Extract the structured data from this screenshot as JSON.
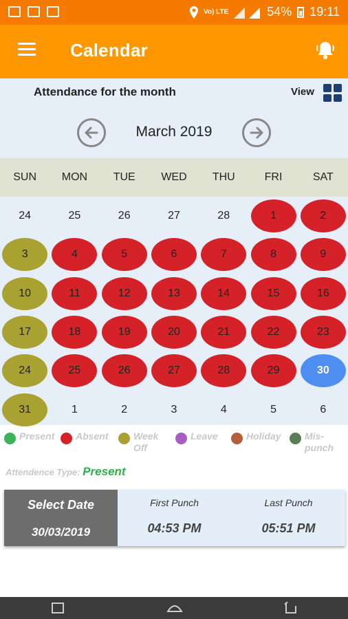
{
  "status_bar": {
    "battery": "54%",
    "time": "19:11",
    "signal": "Vo) LTE"
  },
  "app_bar": {
    "title": "Calendar"
  },
  "calendar": {
    "heading": "Attendance for the month",
    "view_label": "View",
    "month": "March 2019",
    "weekdays": [
      "SUN",
      "MON",
      "TUE",
      "WED",
      "THU",
      "FRI",
      "SAT"
    ],
    "weeks": [
      [
        {
          "d": "24",
          "s": "other"
        },
        {
          "d": "25",
          "s": "other"
        },
        {
          "d": "26",
          "s": "other"
        },
        {
          "d": "27",
          "s": "other"
        },
        {
          "d": "28",
          "s": "other"
        },
        {
          "d": "1",
          "s": "absent"
        },
        {
          "d": "2",
          "s": "absent"
        }
      ],
      [
        {
          "d": "3",
          "s": "weekoff"
        },
        {
          "d": "4",
          "s": "absent"
        },
        {
          "d": "5",
          "s": "absent"
        },
        {
          "d": "6",
          "s": "absent"
        },
        {
          "d": "7",
          "s": "absent"
        },
        {
          "d": "8",
          "s": "absent"
        },
        {
          "d": "9",
          "s": "absent"
        }
      ],
      [
        {
          "d": "10",
          "s": "weekoff"
        },
        {
          "d": "11",
          "s": "absent"
        },
        {
          "d": "12",
          "s": "absent"
        },
        {
          "d": "13",
          "s": "absent"
        },
        {
          "d": "14",
          "s": "absent"
        },
        {
          "d": "15",
          "s": "absent"
        },
        {
          "d": "16",
          "s": "absent"
        }
      ],
      [
        {
          "d": "17",
          "s": "weekoff"
        },
        {
          "d": "18",
          "s": "absent"
        },
        {
          "d": "19",
          "s": "absent"
        },
        {
          "d": "20",
          "s": "absent"
        },
        {
          "d": "21",
          "s": "absent"
        },
        {
          "d": "22",
          "s": "absent"
        },
        {
          "d": "23",
          "s": "absent"
        }
      ],
      [
        {
          "d": "24",
          "s": "weekoff"
        },
        {
          "d": "25",
          "s": "absent"
        },
        {
          "d": "26",
          "s": "absent"
        },
        {
          "d": "27",
          "s": "absent"
        },
        {
          "d": "28",
          "s": "absent"
        },
        {
          "d": "29",
          "s": "absent"
        },
        {
          "d": "30",
          "s": "today"
        }
      ],
      [
        {
          "d": "31",
          "s": "weekoff"
        },
        {
          "d": "1",
          "s": "other"
        },
        {
          "d": "2",
          "s": "other"
        },
        {
          "d": "3",
          "s": "other"
        },
        {
          "d": "4",
          "s": "other"
        },
        {
          "d": "5",
          "s": "other"
        },
        {
          "d": "6",
          "s": "other"
        }
      ]
    ]
  },
  "legend": [
    {
      "label": "Present",
      "color": "#3bb35a"
    },
    {
      "label": "Absent",
      "color": "#d42228"
    },
    {
      "label": "Week Off",
      "color": "#a9a131"
    },
    {
      "label": "Leave",
      "color": "#a65cc4"
    },
    {
      "label": "Holiday",
      "color": "#b25f3a"
    },
    {
      "label": "Mis-punch",
      "color": "#5a7d54"
    }
  ],
  "attendance_type": {
    "label": "Attendence Type:",
    "value": "Present"
  },
  "punch": {
    "select_label": "Select Date",
    "date": "30/03/2019",
    "first_label": "First Punch",
    "first_time": "04:53 PM",
    "last_label": "Last Punch",
    "last_time": "05:51 PM"
  },
  "colors": {
    "accent": "#ff9800",
    "absent": "#d42228",
    "weekoff": "#a9a131",
    "today": "#4d8ef0"
  }
}
